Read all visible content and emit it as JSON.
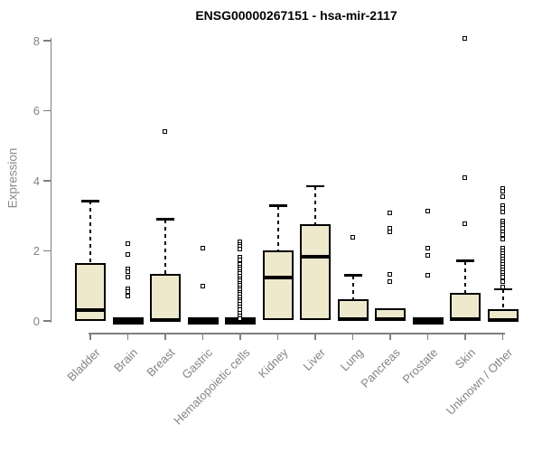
{
  "chart_data": {
    "type": "boxplot",
    "title": "ENSG00000267151 - hsa-mir-2117",
    "ylabel": "Expression",
    "xlabel": "",
    "ylim": [
      0,
      8
    ],
    "yticks": [
      0,
      2,
      4,
      6,
      8
    ],
    "grid": false,
    "legend": "none",
    "box_fill": "#EEE8CD",
    "box_border": "#000000",
    "axis_color": "#7f7f7f",
    "text_color": "#848484",
    "categories": [
      "Bladder",
      "Brain",
      "Breast",
      "Gastric",
      "Hematopoietic cells",
      "Kidney",
      "Liver",
      "Lung",
      "Pancreas",
      "Prostate",
      "Skin",
      "Unknown / Other"
    ],
    "series": [
      {
        "name": "Bladder",
        "q1": 0,
        "median": 0.31,
        "q3": 1.66,
        "whisker_low": 0,
        "whisker_high": 3.42,
        "outliers": []
      },
      {
        "name": "Brain",
        "q1": 0,
        "median": 0,
        "q3": 0,
        "whisker_low": 0,
        "whisker_high": 0,
        "outliers": [
          2.2,
          1.89,
          1.48,
          1.4,
          1.24,
          0.91,
          0.83,
          0.7
        ]
      },
      {
        "name": "Breast",
        "q1": 0,
        "median": 0.03,
        "q3": 1.35,
        "whisker_low": 0,
        "whisker_high": 2.9,
        "outliers": [
          5.39
        ]
      },
      {
        "name": "Gastric",
        "q1": 0,
        "median": 0,
        "q3": 0,
        "whisker_low": 0,
        "whisker_high": 0,
        "outliers": [
          2.07,
          0.98
        ]
      },
      {
        "name": "Hematopoietic cells",
        "q1": 0,
        "median": 0,
        "q3": 0,
        "whisker_low": 0,
        "whisker_high": 0,
        "outliers": [
          2.25,
          2.18,
          2.12,
          2.05,
          1.81,
          1.74,
          1.6,
          1.53,
          1.47,
          1.4,
          1.33,
          1.27,
          1.2,
          1.14,
          1.07,
          1.0,
          0.94,
          0.87,
          0.8,
          0.74,
          0.67,
          0.6,
          0.54,
          0.47,
          0.4,
          0.3,
          0.2,
          0.12,
          0.05
        ]
      },
      {
        "name": "Kidney",
        "q1": 0.02,
        "median": 1.24,
        "q3": 2.02,
        "whisker_low": 0,
        "whisker_high": 3.29,
        "outliers": []
      },
      {
        "name": "Liver",
        "q1": 0.02,
        "median": 1.84,
        "q3": 2.77,
        "whisker_low": 0,
        "whisker_high": 3.84,
        "outliers": []
      },
      {
        "name": "Lung",
        "q1": 0.03,
        "median": 0.06,
        "q3": 0.62,
        "whisker_low": 0,
        "whisker_high": 1.3,
        "outliers": [
          2.38
        ]
      },
      {
        "name": "Pancreas",
        "q1": 0.02,
        "median": 0.05,
        "q3": 0.36,
        "whisker_low": 0,
        "whisker_high": 0.36,
        "outliers": [
          3.07,
          2.64,
          2.54,
          1.32,
          1.11
        ]
      },
      {
        "name": "Prostate",
        "q1": 0,
        "median": 0,
        "q3": 0,
        "whisker_low": 0,
        "whisker_high": 0,
        "outliers": [
          3.13,
          2.07,
          1.87,
          1.3
        ]
      },
      {
        "name": "Skin",
        "q1": 0.02,
        "median": 0.05,
        "q3": 0.8,
        "whisker_low": 0,
        "whisker_high": 1.71,
        "outliers": [
          2.77,
          4.09,
          8.05
        ]
      },
      {
        "name": "Unknown / Other",
        "q1": 0,
        "median": 0.02,
        "q3": 0.34,
        "whisker_low": 0,
        "whisker_high": 0.9,
        "outliers": [
          3.76,
          3.68,
          3.53,
          3.28,
          3.19,
          3.1,
          2.85,
          2.77,
          2.7,
          2.62,
          2.54,
          2.46,
          2.33,
          2.07,
          2.0,
          1.92,
          1.84,
          1.76,
          1.68,
          1.6,
          1.52,
          1.45,
          1.38,
          1.3,
          1.25,
          1.11,
          0.96
        ]
      }
    ]
  }
}
